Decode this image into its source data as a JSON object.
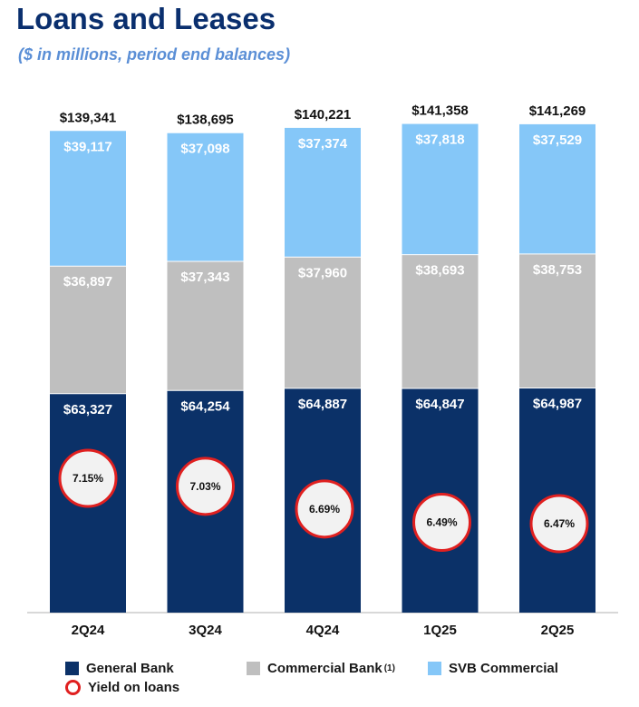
{
  "header": {
    "title": "Loans and Leases",
    "subtitle": "($ in millions, period end balances)"
  },
  "colors": {
    "general_bank": "#0b3168",
    "commercial_bank": "#bfbfbf",
    "svb_commercial": "#85c7f8",
    "yield_ring": "#e02020",
    "yield_fill": "#f2f2f2"
  },
  "chart_data": {
    "type": "bar",
    "stacked": true,
    "categories": [
      "2Q24",
      "3Q24",
      "4Q24",
      "1Q25",
      "2Q25"
    ],
    "series": [
      {
        "name": "General Bank",
        "values": [
          63327,
          64254,
          64887,
          64847,
          64987
        ],
        "labels": [
          "$63,327",
          "$64,254",
          "$64,887",
          "$64,847",
          "$64,987"
        ]
      },
      {
        "name": "Commercial Bank",
        "values": [
          36897,
          37343,
          37960,
          38693,
          38753
        ],
        "labels": [
          "$36,897",
          "$37,343",
          "$37,960",
          "$38,693",
          "$38,753"
        ]
      },
      {
        "name": "SVB Commercial",
        "values": [
          39117,
          37098,
          37374,
          37818,
          37529
        ],
        "labels": [
          "$39,117",
          "$37,098",
          "$37,374",
          "$37,818",
          "$37,529"
        ]
      }
    ],
    "totals": [
      139341,
      138695,
      140221,
      141358,
      141269
    ],
    "total_labels": [
      "$139,341",
      "$138,695",
      "$140,221",
      "$141,358",
      "$141,269"
    ],
    "yield_on_loans": {
      "name": "Yield on loans",
      "values": [
        7.15,
        7.03,
        6.69,
        6.49,
        6.47
      ],
      "labels": [
        "7.15%",
        "7.03%",
        "6.69%",
        "6.49%",
        "6.47%"
      ]
    },
    "legend_position": "bottom"
  },
  "legend": {
    "general_bank": "General Bank",
    "commercial_bank": "Commercial Bank",
    "commercial_bank_note": "(1)",
    "svb_commercial": "SVB Commercial",
    "yield": "Yield on loans"
  }
}
